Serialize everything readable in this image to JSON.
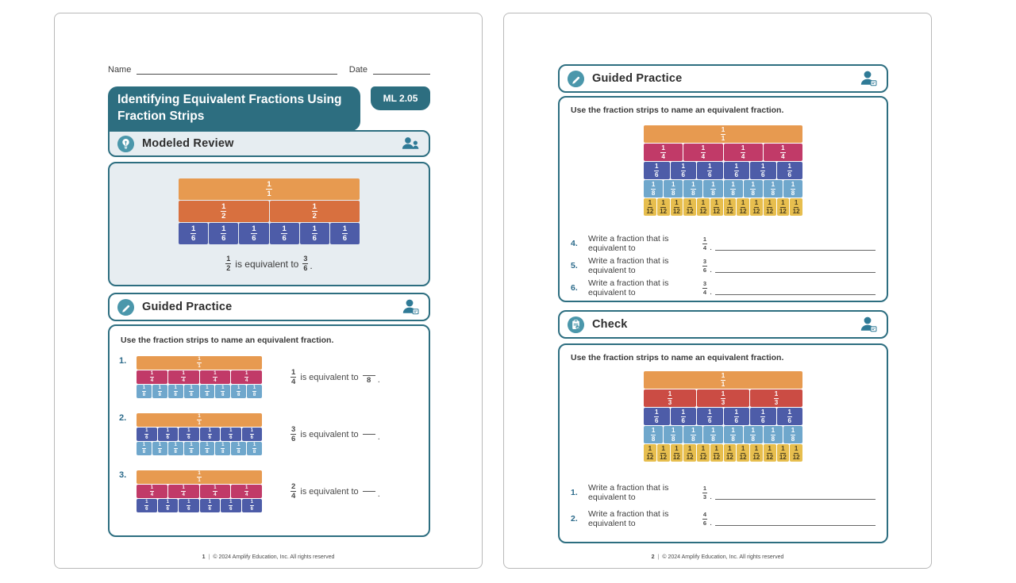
{
  "colors": {
    "teal_dark": "#2D6E80",
    "teal_icon": "#4B97AB",
    "header_bg": "#E6EDF1",
    "strip_one": "#E79A50",
    "strip_half": "#D8703F",
    "strip_third": "#CB4C44",
    "strip_fourth": "#C13A68",
    "strip_sixth": "#4D5CA8",
    "strip_eighth": "#6FA7CC",
    "strip_twelfth": "#E7BE4E"
  },
  "page1": {
    "name_label": "Name",
    "date_label": "Date",
    "title": "Identifying Equivalent Fractions Using Fraction Strips",
    "badge": "ML 2.05",
    "modeled_review": {
      "heading": "Modeled Review",
      "strip": [
        {
          "n": "1",
          "d": "1",
          "count": 1,
          "bg": "#E79A50",
          "fg": "#FFFFFF"
        },
        {
          "n": "1",
          "d": "2",
          "count": 2,
          "bg": "#D8703F",
          "fg": "#FFFFFF"
        },
        {
          "n": "1",
          "d": "6",
          "count": 6,
          "bg": "#4D5CA8",
          "fg": "#FFFFFF"
        }
      ],
      "caption": {
        "f1_n": "1",
        "f1_d": "2",
        "text": "is equivalent to",
        "f2_n": "3",
        "f2_d": "6",
        "punct": "."
      }
    },
    "guided_practice": {
      "heading": "Guided Practice",
      "instruction": "Use the fraction strips to name an equivalent fraction.",
      "problems": [
        {
          "num": "1.",
          "strip": [
            {
              "n": "1",
              "d": "1",
              "count": 1,
              "bg": "#E79A50",
              "fg": "#FFFFFF"
            },
            {
              "n": "1",
              "d": "4",
              "count": 4,
              "bg": "#C13A68",
              "fg": "#FFFFFF"
            },
            {
              "n": "1",
              "d": "8",
              "count": 8,
              "bg": "#6FA7CC",
              "fg": "#FFFFFF"
            }
          ],
          "eq": {
            "n": "1",
            "d": "4",
            "text": "is equivalent to",
            "ans_n": "",
            "ans_d": "8",
            "punct": "."
          }
        },
        {
          "num": "2.",
          "strip": [
            {
              "n": "1",
              "d": "1",
              "count": 1,
              "bg": "#E79A50",
              "fg": "#FFFFFF"
            },
            {
              "n": "1",
              "d": "6",
              "count": 6,
              "bg": "#4D5CA8",
              "fg": "#FFFFFF"
            },
            {
              "n": "1",
              "d": "8",
              "count": 8,
              "bg": "#6FA7CC",
              "fg": "#FFFFFF"
            }
          ],
          "eq": {
            "n": "3",
            "d": "6",
            "text": "is equivalent to",
            "ans_n": "",
            "ans_d": "",
            "punct": "."
          }
        },
        {
          "num": "3.",
          "strip": [
            {
              "n": "1",
              "d": "1",
              "count": 1,
              "bg": "#E79A50",
              "fg": "#FFFFFF"
            },
            {
              "n": "1",
              "d": "4",
              "count": 4,
              "bg": "#C13A68",
              "fg": "#FFFFFF"
            },
            {
              "n": "1",
              "d": "6",
              "count": 6,
              "bg": "#4D5CA8",
              "fg": "#FFFFFF"
            }
          ],
          "eq": {
            "n": "2",
            "d": "4",
            "text": "is equivalent to",
            "ans_n": "",
            "ans_d": "",
            "punct": "."
          }
        }
      ]
    },
    "footer": {
      "page": "1",
      "divider": "|",
      "copyright": "© 2024 Amplify Education, Inc. All rights reserved"
    }
  },
  "page2": {
    "guided_practice": {
      "heading": "Guided Practice",
      "instruction": "Use the fraction strips to name an equivalent fraction.",
      "strip": [
        {
          "n": "1",
          "d": "1",
          "count": 1,
          "bg": "#E79A50",
          "fg": "#FFFFFF"
        },
        {
          "n": "1",
          "d": "4",
          "count": 4,
          "bg": "#C13A68",
          "fg": "#FFFFFF"
        },
        {
          "n": "1",
          "d": "6",
          "count": 6,
          "bg": "#4D5CA8",
          "fg": "#FFFFFF"
        },
        {
          "n": "1",
          "d": "8",
          "count": 8,
          "bg": "#6FA7CC",
          "fg": "#FFFFFF"
        },
        {
          "n": "1",
          "d": "12",
          "count": 12,
          "bg": "#E7BE4E",
          "fg": "#4A3F1F"
        }
      ],
      "questions": [
        {
          "num": "4.",
          "text": "Write a fraction that is equivalent to",
          "n": "1",
          "d": "4",
          "punct": "."
        },
        {
          "num": "5.",
          "text": "Write a fraction that is equivalent to",
          "n": "3",
          "d": "6",
          "punct": "."
        },
        {
          "num": "6.",
          "text": "Write a fraction that is equivalent to",
          "n": "3",
          "d": "4",
          "punct": "."
        }
      ]
    },
    "check": {
      "heading": "Check",
      "instruction": "Use the fraction strips to name an equivalent fraction.",
      "strip": [
        {
          "n": "1",
          "d": "1",
          "count": 1,
          "bg": "#E79A50",
          "fg": "#FFFFFF"
        },
        {
          "n": "1",
          "d": "3",
          "count": 3,
          "bg": "#CB4C44",
          "fg": "#FFFFFF"
        },
        {
          "n": "1",
          "d": "6",
          "count": 6,
          "bg": "#4D5CA8",
          "fg": "#FFFFFF"
        },
        {
          "n": "1",
          "d": "8",
          "count": 8,
          "bg": "#6FA7CC",
          "fg": "#FFFFFF"
        },
        {
          "n": "1",
          "d": "12",
          "count": 12,
          "bg": "#E7BE4E",
          "fg": "#4A3F1F"
        }
      ],
      "questions": [
        {
          "num": "1.",
          "text": "Write a fraction that is equivalent to",
          "n": "1",
          "d": "3",
          "punct": "."
        },
        {
          "num": "2.",
          "text": "Write a fraction that is equivalent to",
          "n": "4",
          "d": "6",
          "punct": "."
        }
      ]
    },
    "footer": {
      "page": "2",
      "divider": "|",
      "copyright": "© 2024 Amplify Education, Inc. All rights reserved"
    }
  }
}
